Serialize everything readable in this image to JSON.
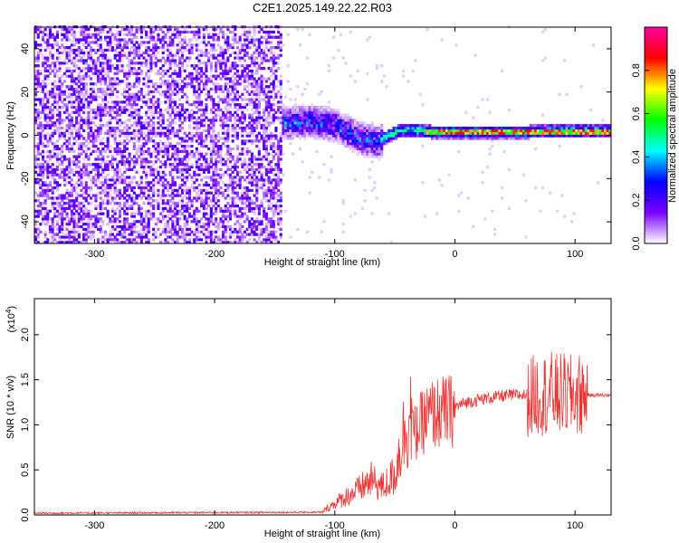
{
  "title": "C2E1.2025.149.22.22.R03",
  "chart_data": [
    {
      "type": "heatmap",
      "xlabel": "Height of straight line (km)",
      "ylabel": "Frequency (Hz)",
      "xlim": [
        -350,
        130
      ],
      "ylim": [
        -50,
        50
      ],
      "x_ticks": [
        -300,
        -200,
        -100,
        0,
        100
      ],
      "y_ticks": [
        -40,
        -20,
        0,
        20,
        40
      ],
      "colorbar": {
        "label": "Normalized spectral amplitude",
        "range": [
          0,
          1
        ],
        "ticks": [
          "0.0",
          "0.2",
          "0.4",
          "0.6",
          "0.8"
        ],
        "colors": [
          "#ffffff",
          "#7a00ff",
          "#0000ff",
          "#00ffff",
          "#00ff00",
          "#ffff00",
          "#ff0000",
          "#ff00a0"
        ]
      },
      "ridge": {
        "x": [
          -150,
          -120,
          -100,
          -80,
          -65,
          -60,
          -50,
          -40,
          -20,
          0,
          30,
          60,
          80,
          100,
          130
        ],
        "freq": [
          5,
          6,
          4,
          -2,
          -4,
          -2,
          1,
          2,
          1,
          1,
          1,
          1,
          1.5,
          1.5,
          1.5
        ]
      }
    },
    {
      "type": "line",
      "xlabel": "Height of straight line (km)",
      "ylabel": "SNR (10 * v/v)",
      "yscale_note": "(x10",
      "yscale_exp": "4",
      "xlim": [
        -350,
        130
      ],
      "ylim": [
        0,
        24000
      ],
      "x_ticks": [
        -300,
        -200,
        -100,
        0,
        100
      ],
      "y_ticks": [
        "0.0",
        "0.5",
        "1.0",
        "1.5",
        "2.0"
      ],
      "color": "#ee3333",
      "envelope": {
        "x": [
          -350,
          -110,
          -100,
          -80,
          -70,
          -60,
          -50,
          -45,
          -40,
          -35,
          -30,
          -25,
          -20,
          -10,
          0,
          10,
          20,
          30,
          40,
          50,
          60,
          65,
          70,
          75,
          80,
          85,
          90,
          95,
          100,
          105,
          110,
          130
        ],
        "y": [
          200,
          300,
          1000,
          2200,
          3000,
          2400,
          3500,
          6000,
          8000,
          9000,
          10000,
          11000,
          11500,
          11800,
          12000,
          12500,
          12800,
          13000,
          13200,
          13300,
          13300,
          13200,
          13500,
          13400,
          13500,
          13300,
          13400,
          13200,
          13300,
          13400,
          13300,
          13300
        ]
      }
    }
  ]
}
